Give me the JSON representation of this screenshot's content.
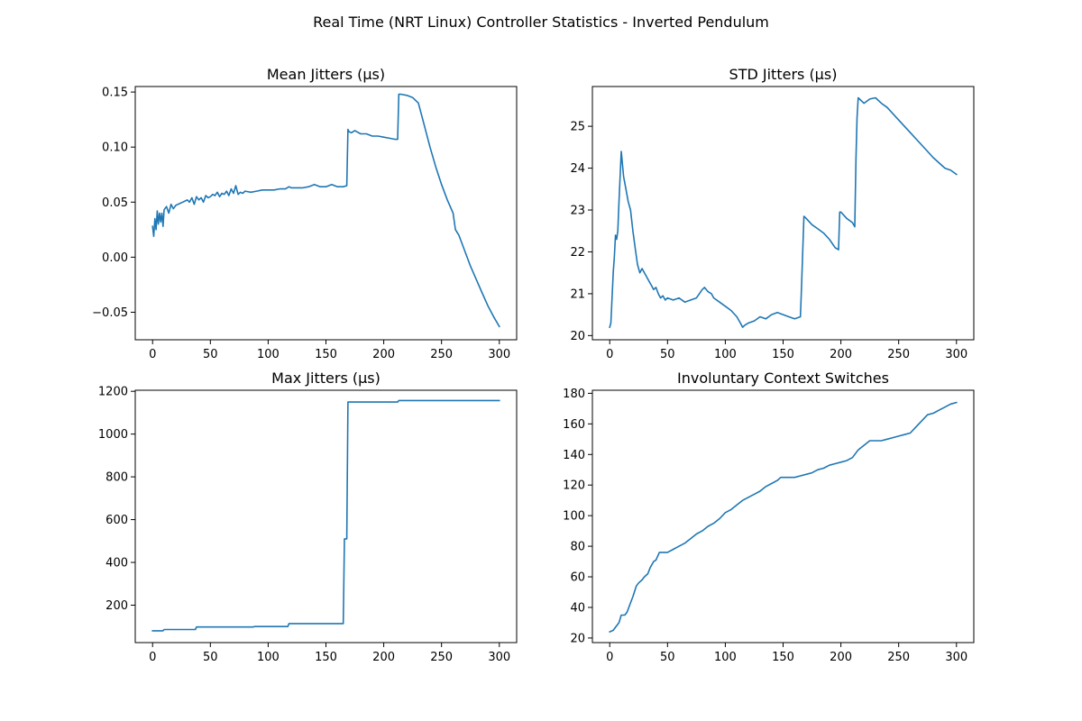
{
  "figure": {
    "suptitle": "Real Time (NRT Linux) Controller Statistics - Inverted Pendulum",
    "line_color": "#1f77b4"
  },
  "chart_data": [
    {
      "type": "line",
      "title": "Mean Jitters (μs)",
      "xlabel": "",
      "ylabel": "",
      "xlim": [
        -15,
        315
      ],
      "ylim": [
        -0.075,
        0.155
      ],
      "xticks": [
        0,
        50,
        100,
        150,
        200,
        250,
        300
      ],
      "xtick_labels": [
        "0",
        "50",
        "100",
        "150",
        "200",
        "250",
        "300"
      ],
      "yticks": [
        -0.05,
        0.0,
        0.05,
        0.1,
        0.15
      ],
      "ytick_labels": [
        "−0.05",
        "0.00",
        "0.05",
        "0.10",
        "0.15"
      ],
      "grid": false,
      "series": [
        {
          "x": [
            0,
            1,
            2,
            3,
            4,
            5,
            6,
            7,
            8,
            9,
            10,
            12,
            14,
            16,
            18,
            20,
            22,
            24,
            26,
            28,
            30,
            32,
            34,
            36,
            38,
            40,
            42,
            44,
            46,
            48,
            50,
            52,
            54,
            56,
            58,
            60,
            62,
            64,
            66,
            68,
            70,
            72,
            74,
            76,
            78,
            80,
            85,
            90,
            95,
            100,
            105,
            110,
            115,
            118,
            120,
            125,
            130,
            135,
            140,
            145,
            150,
            155,
            160,
            165,
            168,
            169,
            170,
            172,
            175,
            180,
            185,
            190,
            195,
            200,
            205,
            210,
            212,
            213,
            215,
            220,
            225,
            230,
            235,
            240,
            245,
            250,
            255,
            260,
            262,
            265,
            270,
            275,
            280,
            285,
            290,
            295,
            300
          ],
          "y": [
            0.028,
            0.019,
            0.035,
            0.025,
            0.042,
            0.03,
            0.04,
            0.032,
            0.04,
            0.028,
            0.043,
            0.046,
            0.04,
            0.048,
            0.044,
            0.047,
            0.048,
            0.049,
            0.05,
            0.051,
            0.052,
            0.05,
            0.054,
            0.048,
            0.055,
            0.052,
            0.054,
            0.05,
            0.056,
            0.054,
            0.055,
            0.057,
            0.056,
            0.059,
            0.055,
            0.058,
            0.057,
            0.06,
            0.056,
            0.062,
            0.058,
            0.065,
            0.057,
            0.059,
            0.058,
            0.06,
            0.059,
            0.06,
            0.061,
            0.061,
            0.061,
            0.062,
            0.062,
            0.064,
            0.063,
            0.063,
            0.063,
            0.064,
            0.066,
            0.064,
            0.064,
            0.066,
            0.064,
            0.064,
            0.065,
            0.116,
            0.114,
            0.113,
            0.115,
            0.112,
            0.112,
            0.11,
            0.11,
            0.109,
            0.108,
            0.107,
            0.107,
            0.148,
            0.148,
            0.147,
            0.145,
            0.14,
            0.12,
            0.1,
            0.082,
            0.066,
            0.052,
            0.04,
            0.025,
            0.02,
            0.006,
            -0.008,
            -0.02,
            -0.032,
            -0.044,
            -0.054,
            -0.063
          ]
        }
      ]
    },
    {
      "type": "line",
      "title": "STD Jitters (μs)",
      "xlabel": "",
      "ylabel": "",
      "xlim": [
        -15,
        315
      ],
      "ylim": [
        19.9,
        25.95
      ],
      "xticks": [
        0,
        50,
        100,
        150,
        200,
        250,
        300
      ],
      "xtick_labels": [
        "0",
        "50",
        "100",
        "150",
        "200",
        "250",
        "300"
      ],
      "yticks": [
        20,
        21,
        22,
        23,
        24,
        25
      ],
      "ytick_labels": [
        "20",
        "21",
        "22",
        "23",
        "24",
        "25"
      ],
      "grid": false,
      "series": [
        {
          "x": [
            0,
            1,
            2,
            3,
            4,
            5,
            6,
            7,
            8,
            10,
            12,
            14,
            16,
            18,
            20,
            22,
            24,
            26,
            28,
            30,
            32,
            34,
            36,
            38,
            40,
            42,
            44,
            46,
            48,
            50,
            55,
            60,
            65,
            70,
            75,
            80,
            82,
            85,
            88,
            90,
            95,
            100,
            105,
            110,
            113,
            115,
            117,
            120,
            125,
            130,
            135,
            140,
            145,
            150,
            155,
            160,
            165,
            166,
            168,
            170,
            175,
            180,
            185,
            190,
            195,
            198,
            199,
            200,
            205,
            210,
            212,
            213,
            214,
            215,
            220,
            225,
            230,
            235,
            240,
            250,
            260,
            270,
            280,
            290,
            295,
            300
          ],
          "y": [
            20.2,
            20.3,
            20.9,
            21.5,
            21.9,
            22.4,
            22.3,
            22.5,
            23.2,
            24.4,
            23.8,
            23.5,
            23.2,
            23.0,
            22.5,
            22.1,
            21.7,
            21.5,
            21.6,
            21.5,
            21.4,
            21.3,
            21.2,
            21.1,
            21.15,
            21.0,
            20.9,
            20.95,
            20.85,
            20.9,
            20.85,
            20.9,
            20.8,
            20.85,
            20.9,
            21.1,
            21.15,
            21.05,
            21.0,
            20.9,
            20.8,
            20.7,
            20.6,
            20.45,
            20.3,
            20.2,
            20.25,
            20.3,
            20.35,
            20.45,
            20.4,
            20.5,
            20.55,
            20.5,
            20.45,
            20.4,
            20.45,
            21.2,
            22.85,
            22.8,
            22.65,
            22.55,
            22.45,
            22.3,
            22.1,
            22.05,
            22.95,
            22.95,
            22.8,
            22.7,
            22.6,
            24.2,
            25.2,
            25.68,
            25.55,
            25.65,
            25.68,
            25.55,
            25.45,
            25.15,
            24.85,
            24.55,
            24.25,
            24.0,
            23.95,
            23.85
          ]
        }
      ]
    },
    {
      "type": "line",
      "title": "Max Jitters (μs)",
      "xlabel": "",
      "ylabel": "",
      "xlim": [
        -15,
        315
      ],
      "ylim": [
        25,
        1205
      ],
      "xticks": [
        0,
        50,
        100,
        150,
        200,
        250,
        300
      ],
      "xtick_labels": [
        "0",
        "50",
        "100",
        "150",
        "200",
        "250",
        "300"
      ],
      "yticks": [
        200,
        400,
        600,
        800,
        1000,
        1200
      ],
      "ytick_labels": [
        "200",
        "400",
        "600",
        "800",
        "1000",
        "1200"
      ],
      "grid": false,
      "series": [
        {
          "x": [
            0,
            9,
            10,
            37,
            38,
            87,
            88,
            117,
            118,
            165,
            166,
            168,
            169,
            212,
            213,
            300
          ],
          "y": [
            80,
            80,
            86,
            86,
            98,
            98,
            100,
            100,
            114,
            114,
            510,
            510,
            1150,
            1150,
            1157,
            1157
          ]
        }
      ]
    },
    {
      "type": "line",
      "title": "Involuntary Context Switches",
      "xlabel": "",
      "ylabel": "",
      "xlim": [
        -15,
        315
      ],
      "ylim": [
        17,
        182
      ],
      "xticks": [
        0,
        50,
        100,
        150,
        200,
        250,
        300
      ],
      "xtick_labels": [
        "0",
        "50",
        "100",
        "150",
        "200",
        "250",
        "300"
      ],
      "yticks": [
        20,
        40,
        60,
        80,
        100,
        120,
        140,
        160,
        180
      ],
      "ytick_labels": [
        "20",
        "40",
        "60",
        "80",
        "100",
        "120",
        "140",
        "160",
        "180"
      ],
      "grid": false,
      "series": [
        {
          "x": [
            0,
            3,
            5,
            8,
            10,
            13,
            15,
            18,
            20,
            23,
            25,
            28,
            30,
            33,
            35,
            38,
            40,
            43,
            45,
            48,
            50,
            55,
            60,
            65,
            70,
            75,
            80,
            85,
            90,
            95,
            100,
            105,
            110,
            115,
            120,
            125,
            130,
            135,
            140,
            145,
            148,
            150,
            155,
            160,
            165,
            170,
            175,
            180,
            185,
            190,
            195,
            200,
            205,
            210,
            215,
            220,
            225,
            230,
            235,
            240,
            245,
            250,
            255,
            260,
            265,
            270,
            275,
            280,
            285,
            290,
            295,
            300
          ],
          "y": [
            24,
            25,
            27,
            30,
            35,
            35,
            37,
            43,
            47,
            54,
            56,
            58,
            60,
            62,
            66,
            70,
            71,
            76,
            76,
            76,
            76,
            78,
            80,
            82,
            85,
            88,
            90,
            93,
            95,
            98,
            102,
            104,
            107,
            110,
            112,
            114,
            116,
            119,
            121,
            123,
            125,
            125,
            125,
            125,
            126,
            127,
            128,
            130,
            131,
            133,
            134,
            135,
            136,
            138,
            143,
            146,
            149,
            149,
            149,
            150,
            151,
            152,
            153,
            154,
            158,
            162,
            166,
            167,
            169,
            171,
            173,
            174
          ]
        }
      ]
    }
  ]
}
